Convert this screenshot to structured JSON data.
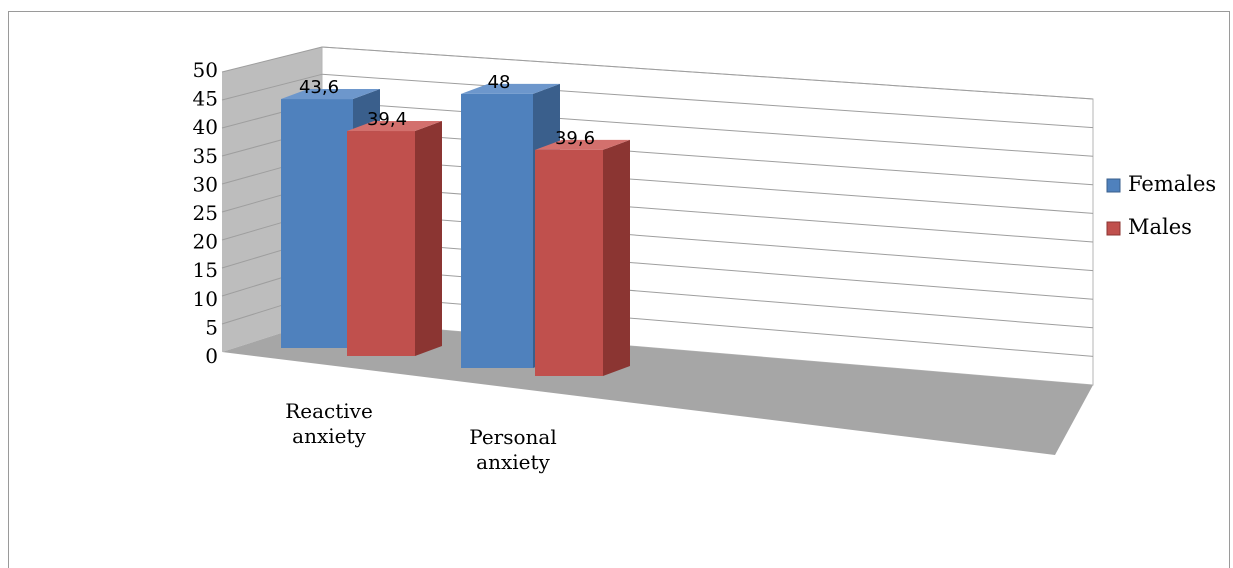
{
  "chart_data": {
    "type": "bar",
    "categories": [
      "Reactive anxiety",
      "Personal anxiety"
    ],
    "category_lines": [
      [
        "Reactive",
        "anxiety"
      ],
      [
        "Personal",
        "anxiety"
      ]
    ],
    "series": [
      {
        "name": "Females",
        "values": [
          43.6,
          48
        ],
        "labels": [
          "43,6",
          "48"
        ],
        "color": "#4F81BD",
        "side": "#3A5F8C",
        "top": "#6D97CC"
      },
      {
        "name": "Males",
        "values": [
          39.4,
          39.6
        ],
        "labels": [
          "39,4",
          "39,6"
        ],
        "color": "#C0504D",
        "side": "#8B3532",
        "top": "#D3706D"
      }
    ],
    "ylim": [
      0,
      50
    ],
    "yticks": [
      "0",
      "5",
      "10",
      "15",
      "20",
      "25",
      "30",
      "35",
      "40",
      "45",
      "50"
    ],
    "grid": true,
    "legend_position": "right",
    "style": "3d-clustered-column"
  }
}
